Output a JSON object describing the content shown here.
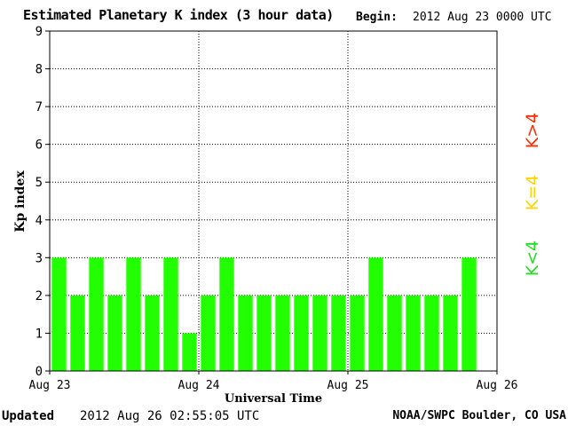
{
  "header": {
    "title": "Estimated Planetary K index (3 hour data)",
    "begin_label": "Begin:",
    "begin_value": "2012 Aug 23 0000 UTC"
  },
  "footer": {
    "updated_label": "Updated",
    "updated_value": "2012 Aug 26 02:55:05 UTC",
    "credit": "NOAA/SWPC Boulder, CO USA"
  },
  "legend": {
    "greater": "K>4",
    "equal": "K=4",
    "less": "K<4"
  },
  "colors": {
    "low": "#22ff00",
    "equal": "#ffd400",
    "high": "#ff2a00"
  },
  "chart_data": {
    "type": "bar",
    "xlabel": "Universal Time",
    "ylabel": "Kp index",
    "ylim": [
      0,
      9
    ],
    "yticks": [
      0,
      1,
      2,
      3,
      4,
      5,
      6,
      7,
      8,
      9
    ],
    "xticks": [
      "Aug 23",
      "Aug 24",
      "Aug 25",
      "Aug 26"
    ],
    "grid": true,
    "values": [
      3,
      2,
      3,
      2,
      3,
      2,
      3,
      1,
      2,
      3,
      2,
      2,
      2,
      2,
      2,
      2,
      2,
      3,
      2,
      2,
      2,
      2,
      3
    ]
  }
}
